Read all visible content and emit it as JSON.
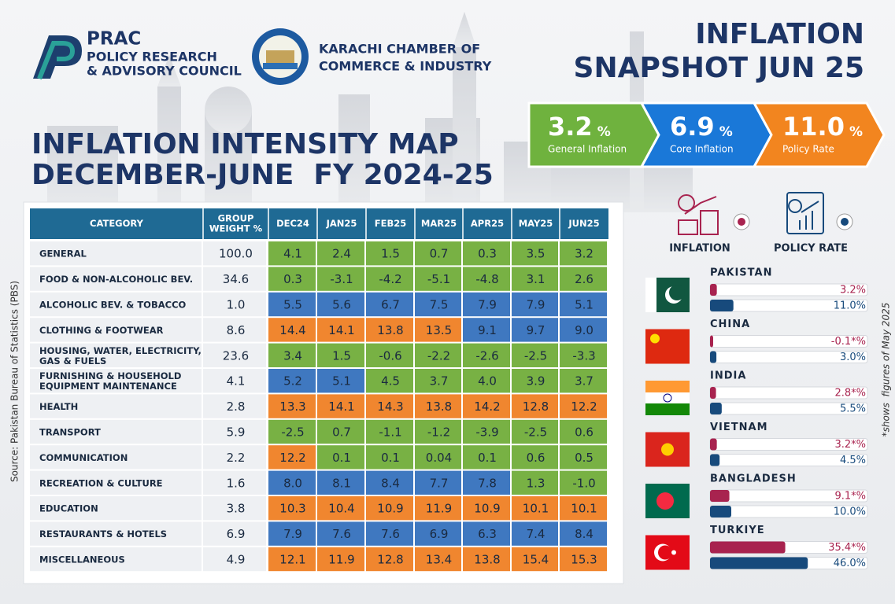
{
  "header": {
    "org1": [
      "PRAC",
      "POLICY RESEARCH",
      "& ADVISORY COUNCIL"
    ],
    "org2": [
      "KARACHI CHAMBER OF",
      "COMMERCE & INDUSTRY"
    ],
    "title": [
      "INFLATION",
      "SNAPSHOT JUN 25"
    ]
  },
  "kpis": [
    {
      "value": "3.2",
      "unit": "%",
      "label": "General Inflation",
      "color": "#6fb23e"
    },
    {
      "value": "6.9",
      "unit": "%",
      "label": "Core Inflation",
      "color": "#1a78d8"
    },
    {
      "value": "11.0",
      "unit": "%",
      "label": "Policy Rate",
      "color": "#f2851f"
    }
  ],
  "map_title": [
    "INFLATION INTENSITY MAP",
    "DECEMBER-JUNE  FY 2024-25"
  ],
  "table": {
    "columns": [
      [
        "CATEGORY"
      ],
      [
        "GROUP",
        "WEIGHT %"
      ],
      [
        "DEC24"
      ],
      [
        "JAN25"
      ],
      [
        "FEB25"
      ],
      [
        "MAR25"
      ],
      [
        "APR25"
      ],
      [
        "MAY25"
      ],
      [
        "JUN25"
      ]
    ],
    "rows": [
      {
        "category": [
          "GENERAL"
        ],
        "weight": "100.0",
        "values": [
          "4.1",
          "2.4",
          "1.5",
          "0.7",
          "0.3",
          "3.5",
          "3.2"
        ],
        "colors": [
          "#78b144",
          "#78b144",
          "#78b144",
          "#78b144",
          "#78b144",
          "#78b144",
          "#78b144"
        ]
      },
      {
        "category": [
          "FOOD & NON-ALCOHOLIC BEV."
        ],
        "weight": "34.6",
        "values": [
          "0.3",
          "-3.1",
          "-4.2",
          "-5.1",
          "-4.8",
          "3.1",
          "2.6"
        ],
        "colors": [
          "#78b144",
          "#78b144",
          "#78b144",
          "#78b144",
          "#78b144",
          "#78b144",
          "#78b144"
        ]
      },
      {
        "category": [
          "ALCOHOLIC BEV. & TOBACCO"
        ],
        "weight": "1.0",
        "values": [
          "5.5",
          "5.6",
          "6.7",
          "7.5",
          "7.9",
          "7.9",
          "5.1"
        ],
        "colors": [
          "#3f78c0",
          "#3f78c0",
          "#3f78c0",
          "#3f78c0",
          "#3f78c0",
          "#3f78c0",
          "#3f78c0"
        ]
      },
      {
        "category": [
          "CLOTHING & FOOTWEAR"
        ],
        "weight": "8.6",
        "values": [
          "14.4",
          "14.1",
          "13.8",
          "13.5",
          "9.1",
          "9.7",
          "9.0"
        ],
        "colors": [
          "#f0862f",
          "#f0862f",
          "#f0862f",
          "#f0862f",
          "#3f78c0",
          "#3f78c0",
          "#3f78c0"
        ]
      },
      {
        "category": [
          "HOUSING, WATER, ELECTRICITY,",
          "GAS & FUELS"
        ],
        "weight": "23.6",
        "values": [
          "3.4",
          "1.5",
          "-0.6",
          "-2.2",
          "-2.6",
          "-2.5",
          "-3.3"
        ],
        "colors": [
          "#78b144",
          "#78b144",
          "#78b144",
          "#78b144",
          "#78b144",
          "#78b144",
          "#78b144"
        ]
      },
      {
        "category": [
          "FURNISHING & HOUSEHOLD",
          "EQUIPMENT MAINTENANCE"
        ],
        "weight": "4.1",
        "values": [
          "5.2",
          "5.1",
          "4.5",
          "3.7",
          "4.0",
          "3.9",
          "3.7"
        ],
        "colors": [
          "#3f78c0",
          "#3f78c0",
          "#78b144",
          "#78b144",
          "#78b144",
          "#78b144",
          "#78b144"
        ]
      },
      {
        "category": [
          "HEALTH"
        ],
        "weight": "2.8",
        "values": [
          "13.3",
          "14.1",
          "14.3",
          "13.8",
          "14.2",
          "12.8",
          "12.2"
        ],
        "colors": [
          "#f0862f",
          "#f0862f",
          "#f0862f",
          "#f0862f",
          "#f0862f",
          "#f0862f",
          "#f0862f"
        ]
      },
      {
        "category": [
          "TRANSPORT"
        ],
        "weight": "5.9",
        "values": [
          "-2.5",
          "0.7",
          "-1.1",
          "-1.2",
          "-3.9",
          "-2.5",
          "0.6"
        ],
        "colors": [
          "#78b144",
          "#78b144",
          "#78b144",
          "#78b144",
          "#78b144",
          "#78b144",
          "#78b144"
        ]
      },
      {
        "category": [
          "COMMUNICATION"
        ],
        "weight": "2.2",
        "values": [
          "12.2",
          "0.1",
          "0.1",
          "0.04",
          "0.1",
          "0.6",
          "0.5"
        ],
        "colors": [
          "#f0862f",
          "#78b144",
          "#78b144",
          "#78b144",
          "#78b144",
          "#78b144",
          "#78b144"
        ]
      },
      {
        "category": [
          "RECREATION & CULTURE"
        ],
        "weight": "1.6",
        "values": [
          "8.0",
          "8.1",
          "8.4",
          "7.7",
          "7.8",
          "1.3",
          "-1.0"
        ],
        "colors": [
          "#3f78c0",
          "#3f78c0",
          "#3f78c0",
          "#3f78c0",
          "#3f78c0",
          "#78b144",
          "#78b144"
        ]
      },
      {
        "category": [
          "EDUCATION"
        ],
        "weight": "3.8",
        "values": [
          "10.3",
          "10.4",
          "10.9",
          "11.9",
          "10.9",
          "10.1",
          "10.1"
        ],
        "colors": [
          "#f0862f",
          "#f0862f",
          "#f0862f",
          "#f0862f",
          "#f0862f",
          "#f0862f",
          "#f0862f"
        ]
      },
      {
        "category": [
          "RESTAURANTS & HOTELS"
        ],
        "weight": "6.9",
        "values": [
          "7.9",
          "7.6",
          "7.6",
          "6.9",
          "6.3",
          "7.4",
          "8.4"
        ],
        "colors": [
          "#3f78c0",
          "#3f78c0",
          "#3f78c0",
          "#3f78c0",
          "#3f78c0",
          "#3f78c0",
          "#3f78c0"
        ]
      },
      {
        "category": [
          "MISCELLANEOUS"
        ],
        "weight": "4.9",
        "values": [
          "12.1",
          "11.9",
          "12.8",
          "13.4",
          "13.8",
          "15.4",
          "15.3"
        ],
        "colors": [
          "#f0862f",
          "#f0862f",
          "#f0862f",
          "#f0862f",
          "#f0862f",
          "#f0862f",
          "#f0862f"
        ]
      }
    ]
  },
  "country_bars": {
    "legend": [
      "INFLATION",
      "POLICY RATE"
    ],
    "colors": [
      "#a8234f",
      "#174a7c"
    ],
    "items": [
      {
        "name": "PAKISTAN",
        "inflation": {
          "value": 3.2,
          "label": "3.2%"
        },
        "policy_rate": {
          "value": 11.0,
          "label": "11.0%"
        }
      },
      {
        "name": "CHINA",
        "inflation": {
          "value": -0.1,
          "label": "-0.1*%"
        },
        "policy_rate": {
          "value": 3.0,
          "label": "3.0%"
        }
      },
      {
        "name": "INDIA",
        "inflation": {
          "value": 2.8,
          "label": "2.8*%"
        },
        "policy_rate": {
          "value": 5.5,
          "label": "5.5%"
        }
      },
      {
        "name": "VIETNAM",
        "inflation": {
          "value": 3.2,
          "label": "3.2*%"
        },
        "policy_rate": {
          "value": 4.5,
          "label": "4.5%"
        }
      },
      {
        "name": "BANGLADESH",
        "inflation": {
          "value": 9.1,
          "label": "9.1*%"
        },
        "policy_rate": {
          "value": 10.0,
          "label": "10.0%"
        }
      },
      {
        "name": "TURKIYE",
        "inflation": {
          "value": 35.4,
          "label": "35.4*%"
        },
        "policy_rate": {
          "value": 46.0,
          "label": "46.0%"
        }
      }
    ]
  },
  "source": "Source: Pakistan Bureau of Statistics (PBS)",
  "note": "*shows  figures of May 2025"
}
